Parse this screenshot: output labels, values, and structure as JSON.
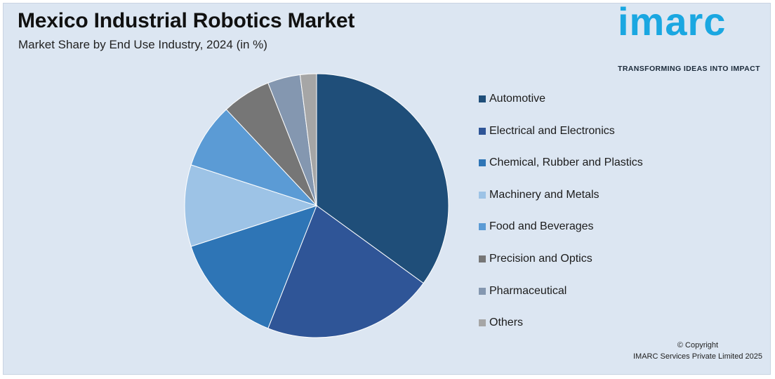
{
  "title": "Mexico Industrial Robotics Market",
  "subtitle": "Market Share by End Use Industry, 2024 (in %)",
  "logo": {
    "word": "imarc",
    "tagline": "TRANSFORMING IDEAS INTO IMPACT"
  },
  "chart_data": {
    "type": "pie",
    "title": "Mexico Industrial Robotics Market",
    "subtitle": "Market Share by End Use Industry, 2024 (in %)",
    "categories": [
      "Automotive",
      "Electrical and Electronics",
      "Chemical, Rubber and Plastics",
      "Machinery and Metals",
      "Food and Beverages",
      "Precision and Optics",
      "Pharmaceutical",
      "Others"
    ],
    "values": [
      35,
      21,
      14,
      10,
      8,
      6,
      4,
      2
    ],
    "colors": [
      "#1f4e79",
      "#2f5597",
      "#2e75b6",
      "#9dc3e6",
      "#5b9bd5",
      "#767676",
      "#8497b0",
      "#a6a6a6"
    ],
    "legend_position": "right"
  },
  "copyright": {
    "line1": "© Copyright",
    "line2": "IMARC Services Private Limited 2025"
  }
}
